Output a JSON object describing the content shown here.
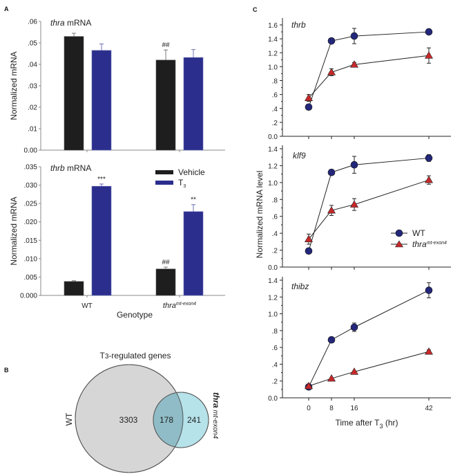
{
  "panels": {
    "A": "A",
    "B": "B",
    "C": "C"
  },
  "colors": {
    "vehicle": "#1e1e1e",
    "t3": "#2b2e8c",
    "wt_marker": "#23277a",
    "mut_marker": "#c8282a",
    "venn_wt": "#d6d6d6",
    "venn_mut": "#a9dde6",
    "venn_overlap": "#8fbcc6"
  },
  "chart_data": [
    {
      "id": "A-top",
      "type": "bar",
      "title": "thra mRNA",
      "title_italic": "thra",
      "title_rest": " mRNA",
      "ylabel": "Normalized mRNA",
      "ylim": [
        0,
        0.06
      ],
      "yticks": [
        ".06",
        ".05",
        ".04",
        ".03",
        ".02",
        ".01",
        "0.00"
      ],
      "ytick_values": [
        0.06,
        0.05,
        0.04,
        0.03,
        0.02,
        0.01,
        0
      ],
      "categories": [
        "WT",
        "thra mt-exon4"
      ],
      "series": [
        {
          "name": "Vehicle",
          "values": [
            0.053,
            0.042
          ],
          "errors": [
            0.0015,
            0.0047
          ]
        },
        {
          "name": "T3",
          "values": [
            0.0465,
            0.0432
          ],
          "errors": [
            0.003,
            0.0037
          ]
        }
      ],
      "annotations": [
        {
          "text": "##",
          "category": 1,
          "series": 0
        }
      ]
    },
    {
      "id": "A-bottom",
      "type": "bar",
      "title": "thrb mRNA",
      "title_italic": "thrb",
      "title_rest": " mRNA",
      "ylabel": "Normalized mRNA",
      "xlabel": "Genotype",
      "ylim": [
        0,
        0.035
      ],
      "yticks": [
        ".035",
        ".030",
        ".025",
        ".020",
        ".015",
        ".010",
        ".005",
        "0.000"
      ],
      "ytick_values": [
        0.035,
        0.03,
        0.025,
        0.02,
        0.015,
        0.01,
        0.005,
        0
      ],
      "categories": [
        "WT",
        "thra"
      ],
      "category_superscript": [
        "",
        "mt-exon4"
      ],
      "series": [
        {
          "name": "Vehicle",
          "values": [
            0.0038,
            0.0072
          ],
          "errors": [
            0.0002,
            0.0005
          ]
        },
        {
          "name": "T3",
          "values": [
            0.0297,
            0.0228
          ],
          "errors": [
            0.0006,
            0.0019
          ]
        }
      ],
      "annotations": [
        {
          "text": "***",
          "category": 0,
          "series": 1
        },
        {
          "text": "**",
          "category": 1,
          "series": 1
        },
        {
          "text": "##",
          "category": 1,
          "series": 0
        }
      ],
      "legend": {
        "position": "top-right",
        "entries": [
          "Vehicle",
          "T"
        ],
        "t3_subscript": "3"
      }
    },
    {
      "id": "B",
      "type": "venn",
      "title": "T3-regulated genes",
      "title_main": "T",
      "title_sub": "3",
      "title_rest": "-regulated genes",
      "sets": [
        {
          "label": "WT",
          "only": 3303
        },
        {
          "label": "thra",
          "label_rest": " mt-exon4",
          "only": 241
        }
      ],
      "overlap": 178
    },
    {
      "id": "C-thrb",
      "type": "line",
      "title": "thrb",
      "x": [
        0,
        8,
        16,
        42
      ],
      "xticks": [
        "0",
        "8",
        "16",
        "42"
      ],
      "ylim": [
        0,
        1.6
      ],
      "yticks": [
        "1.6",
        "1.4",
        "1.2",
        "1.0",
        ".8",
        ".6",
        ".4",
        ".2",
        "0.0"
      ],
      "ytick_values": [
        1.6,
        1.4,
        1.2,
        1.0,
        0.8,
        0.6,
        0.4,
        0.2,
        0
      ],
      "series": [
        {
          "name": "WT",
          "marker": "circle",
          "values": [
            0.42,
            1.37,
            1.44,
            1.5
          ],
          "errors": [
            0.0,
            0.02,
            0.11,
            0.02
          ]
        },
        {
          "name": "thra mt-exon4",
          "marker": "triangle",
          "values": [
            0.55,
            0.92,
            1.03,
            1.16
          ],
          "errors": [
            0.05,
            0.05,
            0.03,
            0.11
          ]
        }
      ]
    },
    {
      "id": "C-klf9",
      "type": "line",
      "title": "klf9",
      "ylabel": "Normalized mRNA level",
      "x": [
        0,
        8,
        16,
        42
      ],
      "ylim": [
        0,
        1.4
      ],
      "yticks": [
        "1.4",
        "1.2",
        "1.0",
        ".8",
        ".6",
        ".4",
        ".2",
        "0.0"
      ],
      "ytick_values": [
        1.4,
        1.2,
        1.0,
        0.8,
        0.6,
        0.4,
        0.2,
        0
      ],
      "series": [
        {
          "name": "WT",
          "marker": "circle",
          "values": [
            0.19,
            1.12,
            1.21,
            1.29
          ],
          "errors": [
            0.0,
            0.0,
            0.1,
            0.04
          ]
        },
        {
          "name": "thra mt-exon4",
          "marker": "triangle",
          "values": [
            0.33,
            0.67,
            0.74,
            1.03
          ],
          "errors": [
            0.06,
            0.06,
            0.07,
            0.05
          ]
        }
      ],
      "legend": {
        "position": "center-right",
        "entries": [
          "WT",
          "thra"
        ],
        "mut_superscript": "mt-exon4"
      }
    },
    {
      "id": "C-thibz",
      "type": "line",
      "title": "thibz",
      "xlabel": "Time after T3 (hr)",
      "xlabel_main": "Time after T",
      "xlabel_sub": "3",
      "xlabel_rest": " (hr)",
      "x": [
        0,
        8,
        16,
        42
      ],
      "xticks": [
        "0",
        "8",
        "16",
        "42"
      ],
      "ylim": [
        0,
        1.4
      ],
      "yticks": [
        "1.4",
        "1.2",
        "1.0",
        ".8",
        ".6",
        ".4",
        ".2",
        "0.0"
      ],
      "ytick_values": [
        1.4,
        1.2,
        1.0,
        0.8,
        0.6,
        0.4,
        0.2,
        0
      ],
      "series": [
        {
          "name": "WT",
          "marker": "circle",
          "values": [
            0.13,
            0.69,
            0.84,
            1.28
          ],
          "errors": [
            0.0,
            0.03,
            0.05,
            0.09
          ]
        },
        {
          "name": "thra mt-exon4",
          "marker": "triangle",
          "values": [
            0.14,
            0.23,
            0.31,
            0.55
          ],
          "errors": [
            0.0,
            0.0,
            0.0,
            0.02
          ]
        }
      ]
    }
  ]
}
